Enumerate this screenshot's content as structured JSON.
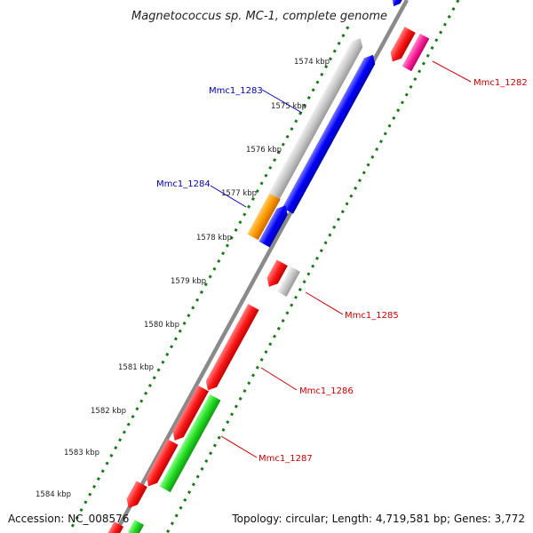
{
  "map": {
    "title": "Magnetococcus sp. MC-1, complete genome",
    "accession": "Accession: NC_008576",
    "summary": "Topology: circular; Length: 4,719,581 bp; Genes: 3,772"
  },
  "ticks": [
    "1574 kbp",
    "1575 kbp",
    "1576 kbp",
    "1577 kbp",
    "1578 kbp",
    "1579 kbp",
    "1580 kbp",
    "1581 kbp",
    "1582 kbp",
    "1583 kbp",
    "1584 kbp"
  ],
  "gene_labels": [
    {
      "id": "mmc1-1282",
      "text": "Mmc1_1282",
      "strand": "reverse"
    },
    {
      "id": "mmc1-1283",
      "text": "Mmc1_1283",
      "strand": "forward"
    },
    {
      "id": "mmc1-1284",
      "text": "Mmc1_1284",
      "strand": "forward"
    },
    {
      "id": "mmc1-1285",
      "text": "Mmc1_1285",
      "strand": "reverse"
    },
    {
      "id": "mmc1-1286",
      "text": "Mmc1_1286",
      "strand": "reverse"
    },
    {
      "id": "mmc1-1287",
      "text": "Mmc1_1287",
      "strand": "reverse"
    }
  ],
  "colors": {
    "forward_label": "#0000aa",
    "reverse_label": "#cc0000",
    "tick_dots": "#1a7a1a",
    "backbone": "#808080",
    "red_feature": "#ee1111",
    "blue_feature": "#0000ee",
    "grey_feature": "#bbbbbb",
    "orange_feature": "#ff9900",
    "green_feature": "#22cc22",
    "pink_feature": "#ee2288"
  }
}
